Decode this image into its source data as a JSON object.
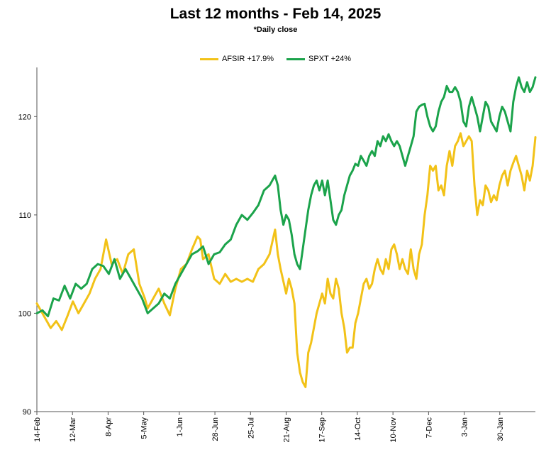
{
  "chart_data": {
    "type": "line",
    "title": "Last 12 months - Feb 14, 2025",
    "subtitle": "*Daily close",
    "xlabel": "",
    "ylabel": "",
    "ylim": [
      90,
      125
    ],
    "yticks": [
      90,
      100,
      110,
      120
    ],
    "categories": [
      "14-Feb",
      "12-Mar",
      "8-Apr",
      "5-May",
      "1-Jun",
      "28-Jun",
      "25-Jul",
      "21-Aug",
      "17-Sep",
      "14-Oct",
      "10-Nov",
      "7-Dec",
      "3-Jan",
      "30-Jan"
    ],
    "legend_position": "top",
    "series": [
      {
        "name": "AFSIR +17.9%",
        "color": "#F2C218",
        "points": [
          [
            0,
            101
          ],
          [
            3,
            99.5
          ],
          [
            5,
            98.5
          ],
          [
            7,
            99.2
          ],
          [
            9,
            98.3
          ],
          [
            11,
            99.7
          ],
          [
            13,
            101.2
          ],
          [
            15,
            100
          ],
          [
            17,
            101
          ],
          [
            19,
            102
          ],
          [
            21,
            103.5
          ],
          [
            23,
            104.5
          ],
          [
            25,
            107.5
          ],
          [
            27,
            105
          ],
          [
            29,
            105.5
          ],
          [
            31,
            104
          ],
          [
            33,
            106
          ],
          [
            35,
            106.5
          ],
          [
            37,
            103
          ],
          [
            39,
            101.5
          ],
          [
            40,
            100.5
          ],
          [
            42,
            101.5
          ],
          [
            44,
            102.5
          ],
          [
            46,
            101
          ],
          [
            48,
            99.8
          ],
          [
            50,
            102.5
          ],
          [
            52,
            104.5
          ],
          [
            54,
            105
          ],
          [
            56,
            106.5
          ],
          [
            58,
            107.8
          ],
          [
            59,
            107.5
          ],
          [
            60,
            105.5
          ],
          [
            62,
            106
          ],
          [
            64,
            103.5
          ],
          [
            66,
            103
          ],
          [
            68,
            104
          ],
          [
            70,
            103.2
          ],
          [
            72,
            103.5
          ],
          [
            74,
            103.2
          ],
          [
            76,
            103.5
          ],
          [
            78,
            103.2
          ],
          [
            80,
            104.5
          ],
          [
            82,
            105
          ],
          [
            84,
            106
          ],
          [
            86,
            108.5
          ],
          [
            87,
            106
          ],
          [
            88,
            104.5
          ],
          [
            90,
            102
          ],
          [
            91,
            103.5
          ],
          [
            92,
            102.5
          ],
          [
            93,
            101
          ],
          [
            94,
            96
          ],
          [
            95,
            94
          ],
          [
            96,
            93
          ],
          [
            97,
            92.5
          ],
          [
            98,
            96
          ],
          [
            99,
            97
          ],
          [
            100,
            98.5
          ],
          [
            101,
            100
          ],
          [
            102,
            101
          ],
          [
            103,
            102
          ],
          [
            104,
            101
          ],
          [
            105,
            103.5
          ],
          [
            106,
            102
          ],
          [
            107,
            101.5
          ],
          [
            108,
            103.5
          ],
          [
            109,
            102.5
          ],
          [
            110,
            100
          ],
          [
            111,
            98.5
          ],
          [
            112,
            96
          ],
          [
            113,
            96.5
          ],
          [
            114,
            96.5
          ],
          [
            115,
            99
          ],
          [
            116,
            100
          ],
          [
            117,
            101.5
          ],
          [
            118,
            103
          ],
          [
            119,
            103.5
          ],
          [
            120,
            102.5
          ],
          [
            121,
            103
          ],
          [
            122,
            104.5
          ],
          [
            123,
            105.5
          ],
          [
            124,
            104.5
          ],
          [
            125,
            104
          ],
          [
            126,
            105.5
          ],
          [
            127,
            104.5
          ],
          [
            128,
            106.5
          ],
          [
            129,
            107
          ],
          [
            130,
            106
          ],
          [
            131,
            104.5
          ],
          [
            132,
            105.5
          ],
          [
            133,
            104.5
          ],
          [
            134,
            104
          ],
          [
            135,
            106.5
          ],
          [
            136,
            104.5
          ],
          [
            137,
            103.5
          ],
          [
            138,
            106
          ],
          [
            139,
            107
          ],
          [
            140,
            110
          ],
          [
            141,
            112
          ],
          [
            142,
            115
          ],
          [
            143,
            114.5
          ],
          [
            144,
            115
          ],
          [
            145,
            112.5
          ],
          [
            146,
            113
          ],
          [
            147,
            112
          ],
          [
            148,
            115
          ],
          [
            149,
            116.5
          ],
          [
            150,
            115
          ],
          [
            151,
            117
          ],
          [
            152,
            117.5
          ],
          [
            153,
            118.3
          ],
          [
            154,
            117
          ],
          [
            155,
            117.5
          ],
          [
            156,
            118
          ],
          [
            157,
            117.5
          ],
          [
            158,
            113
          ],
          [
            159,
            110
          ],
          [
            160,
            111.5
          ],
          [
            161,
            111
          ],
          [
            162,
            113
          ],
          [
            163,
            112.5
          ],
          [
            164,
            111.3
          ],
          [
            165,
            112
          ],
          [
            166,
            111.5
          ],
          [
            167,
            113
          ],
          [
            168,
            114
          ],
          [
            169,
            114.5
          ],
          [
            170,
            113
          ],
          [
            171,
            114.5
          ],
          [
            172,
            115.3
          ],
          [
            173,
            116
          ],
          [
            174,
            115
          ],
          [
            175,
            114
          ],
          [
            176,
            112.5
          ],
          [
            177,
            114.5
          ],
          [
            178,
            113.5
          ],
          [
            179,
            115
          ],
          [
            180,
            117.9
          ]
        ]
      },
      {
        "name": "SPXT +24%",
        "color": "#1BA34B",
        "points": [
          [
            0,
            100
          ],
          [
            2,
            100.3
          ],
          [
            4,
            99.7
          ],
          [
            6,
            101.5
          ],
          [
            8,
            101.3
          ],
          [
            10,
            102.8
          ],
          [
            12,
            101.5
          ],
          [
            14,
            103
          ],
          [
            16,
            102.5
          ],
          [
            18,
            103
          ],
          [
            20,
            104.5
          ],
          [
            22,
            105
          ],
          [
            24,
            104.8
          ],
          [
            26,
            104
          ],
          [
            28,
            105.5
          ],
          [
            30,
            103.5
          ],
          [
            32,
            104.5
          ],
          [
            34,
            103.5
          ],
          [
            36,
            102.5
          ],
          [
            38,
            101.5
          ],
          [
            40,
            100
          ],
          [
            42,
            100.5
          ],
          [
            44,
            101
          ],
          [
            46,
            102
          ],
          [
            48,
            101.5
          ],
          [
            50,
            103
          ],
          [
            52,
            104
          ],
          [
            54,
            105
          ],
          [
            56,
            106
          ],
          [
            58,
            106.3
          ],
          [
            60,
            106.8
          ],
          [
            62,
            105
          ],
          [
            64,
            106
          ],
          [
            66,
            106.2
          ],
          [
            68,
            107
          ],
          [
            70,
            107.5
          ],
          [
            72,
            109
          ],
          [
            74,
            110
          ],
          [
            76,
            109.5
          ],
          [
            78,
            110.2
          ],
          [
            80,
            111
          ],
          [
            82,
            112.5
          ],
          [
            84,
            113
          ],
          [
            86,
            114
          ],
          [
            87,
            113
          ],
          [
            88,
            110.5
          ],
          [
            89,
            109
          ],
          [
            90,
            110
          ],
          [
            91,
            109.5
          ],
          [
            92,
            108
          ],
          [
            93,
            106
          ],
          [
            94,
            105
          ],
          [
            95,
            104.5
          ],
          [
            96,
            106.5
          ],
          [
            97,
            108.5
          ],
          [
            98,
            110.5
          ],
          [
            99,
            112
          ],
          [
            100,
            113
          ],
          [
            101,
            113.5
          ],
          [
            102,
            112.5
          ],
          [
            103,
            113.5
          ],
          [
            104,
            112
          ],
          [
            105,
            113.5
          ],
          [
            106,
            111.5
          ],
          [
            107,
            109.5
          ],
          [
            108,
            109
          ],
          [
            109,
            110
          ],
          [
            110,
            110.5
          ],
          [
            111,
            112
          ],
          [
            112,
            113
          ],
          [
            113,
            114
          ],
          [
            114,
            114.5
          ],
          [
            115,
            115.2
          ],
          [
            116,
            115
          ],
          [
            117,
            116
          ],
          [
            118,
            115.5
          ],
          [
            119,
            115
          ],
          [
            120,
            116
          ],
          [
            121,
            116.5
          ],
          [
            122,
            116
          ],
          [
            123,
            117.5
          ],
          [
            124,
            117
          ],
          [
            125,
            118
          ],
          [
            126,
            117.5
          ],
          [
            127,
            118.2
          ],
          [
            128,
            117.5
          ],
          [
            129,
            117
          ],
          [
            130,
            117.5
          ],
          [
            131,
            117
          ],
          [
            132,
            116
          ],
          [
            133,
            115
          ],
          [
            134,
            116
          ],
          [
            135,
            117
          ],
          [
            136,
            118
          ],
          [
            137,
            120.5
          ],
          [
            138,
            121
          ],
          [
            139,
            121.2
          ],
          [
            140,
            121.3
          ],
          [
            141,
            120
          ],
          [
            142,
            119
          ],
          [
            143,
            118.5
          ],
          [
            144,
            119
          ],
          [
            145,
            120.5
          ],
          [
            146,
            121.5
          ],
          [
            147,
            122
          ],
          [
            148,
            123.1
          ],
          [
            149,
            122.5
          ],
          [
            150,
            122.5
          ],
          [
            151,
            123
          ],
          [
            152,
            122.5
          ],
          [
            153,
            121.5
          ],
          [
            154,
            119.5
          ],
          [
            155,
            119
          ],
          [
            156,
            121
          ],
          [
            157,
            122
          ],
          [
            158,
            121
          ],
          [
            159,
            120
          ],
          [
            160,
            118.5
          ],
          [
            161,
            120
          ],
          [
            162,
            121.5
          ],
          [
            163,
            121
          ],
          [
            164,
            119.5
          ],
          [
            165,
            119
          ],
          [
            166,
            118.5
          ],
          [
            167,
            120
          ],
          [
            168,
            121
          ],
          [
            169,
            120.5
          ],
          [
            170,
            119.5
          ],
          [
            171,
            118.5
          ],
          [
            172,
            121.5
          ],
          [
            173,
            123
          ],
          [
            174,
            124
          ],
          [
            175,
            123
          ],
          [
            176,
            122.5
          ],
          [
            177,
            123.5
          ],
          [
            178,
            122.5
          ],
          [
            179,
            123
          ],
          [
            180,
            124
          ]
        ]
      }
    ]
  }
}
